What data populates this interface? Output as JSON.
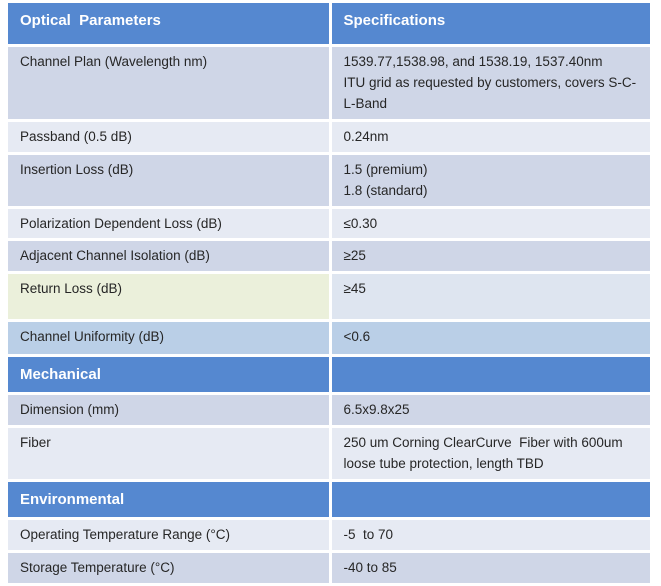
{
  "colors": {
    "header_blue": "#5588D0",
    "row_dark": "#CFD6E7",
    "row_light": "#E6EAF3",
    "row_accent": "#BACFE7",
    "highlight_cream": "#EBF0DB",
    "highlight_right": "#DEE5F0",
    "text_dark": "#262626",
    "header_text": "#FFFFFF"
  },
  "table": {
    "columns": [
      {
        "label": "Optical  Parameters"
      },
      {
        "label": "Specifications"
      }
    ],
    "rows": [
      {
        "kind": "data",
        "variant": "dark",
        "param": "Channel Plan (Wavelength nm)",
        "spec": "1539.77,1538.98, and 1538.19, 1537.40nm\nITU grid as requested by customers, covers S-C-L-Band"
      },
      {
        "kind": "data",
        "variant": "light",
        "param": "Passband (0.5 dB)",
        "spec": "0.24nm"
      },
      {
        "kind": "data",
        "variant": "dark",
        "param": "Insertion Loss (dB)",
        "spec": "1.5 (premium)\n1.8 (standard)"
      },
      {
        "kind": "data",
        "variant": "light",
        "param": "Polarization Dependent Loss (dB)",
        "spec": "≤0.30"
      },
      {
        "kind": "data",
        "variant": "dark",
        "param": "Adjacent Channel Isolation (dB)",
        "spec": "≥25"
      },
      {
        "kind": "data",
        "variant": "highlight",
        "param": "Return Loss (dB)",
        "spec": "≥45"
      },
      {
        "kind": "data",
        "variant": "accent",
        "param": "Channel Uniformity (dB)",
        "spec": "<0.6"
      },
      {
        "kind": "section",
        "param": "Mechanical",
        "spec": ""
      },
      {
        "kind": "data",
        "variant": "dark",
        "param": "Dimension (mm)",
        "spec": "6.5x9.8x25"
      },
      {
        "kind": "data",
        "variant": "light",
        "param": "Fiber",
        "spec": "250 um Corning ClearCurve  Fiber with 600um loose tube protection, length TBD"
      },
      {
        "kind": "section",
        "param": "Environmental",
        "spec": ""
      },
      {
        "kind": "data",
        "variant": "light",
        "param": "Operating Temperature Range (°C)",
        "spec": "-5  to 70"
      },
      {
        "kind": "data",
        "variant": "dark",
        "param": "Storage Temperature (°C)",
        "spec": "-40 to 85"
      }
    ]
  }
}
